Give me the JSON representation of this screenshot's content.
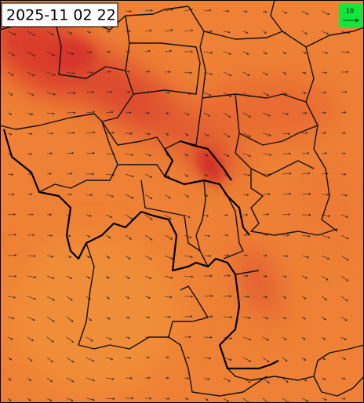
{
  "header": {
    "timestamp": "2025-11 02 22"
  },
  "legend": {
    "wind_scale": "10"
  }
}
